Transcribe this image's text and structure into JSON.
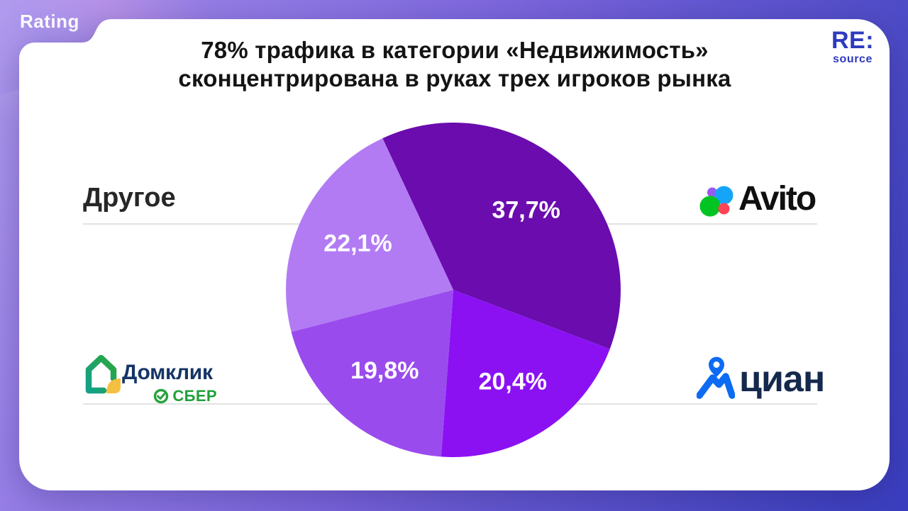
{
  "badge": {
    "label": "Rating"
  },
  "title": {
    "line1": "78% трафика в категории «Недвижимость»",
    "line2": "сконцентрирована в руках трех игроков рынка"
  },
  "brand": {
    "name": "RE:",
    "sub": "source",
    "color": "#2e3abe"
  },
  "labels": {
    "other": "Другое",
    "avito": "Avito",
    "cian": "циан",
    "domclick": "Домклик",
    "sber": "СБЕР"
  },
  "theme": {
    "background_gradient": [
      "#b09bee",
      "#7b65dd",
      "#3a3ec0"
    ],
    "card_color": "#ffffff",
    "title_color": "#141414",
    "divider_color": "#d9d9d9",
    "avito_circles": [
      "#955bf0",
      "#15a5f8",
      "#00c421",
      "#ff4455"
    ],
    "cian_blue": "#0d6bf3",
    "domclick_green": "#21a038",
    "domclick_yellow": "#f5c042",
    "sber_green": "#21a038"
  },
  "chart_data": {
    "type": "pie",
    "title": "78% трафика в категории «Недвижимость» сконцентрирована в руках трех игроков рынка",
    "legend_position": "around",
    "start_angle_deg": -25,
    "direction": "clockwise",
    "label_color": "#ffffff",
    "slices": [
      {
        "label": "Avito",
        "value": 37.7,
        "display": "37,7%",
        "color": "#6a0cae"
      },
      {
        "label": "циан",
        "value": 20.4,
        "display": "20,4%",
        "color": "#8b11f3"
      },
      {
        "label": "Домклик",
        "value": 19.8,
        "display": "19,8%",
        "color": "#9a4bee"
      },
      {
        "label": "Другое",
        "value": 22.1,
        "display": "22,1%",
        "color": "#b27bf3"
      }
    ]
  }
}
